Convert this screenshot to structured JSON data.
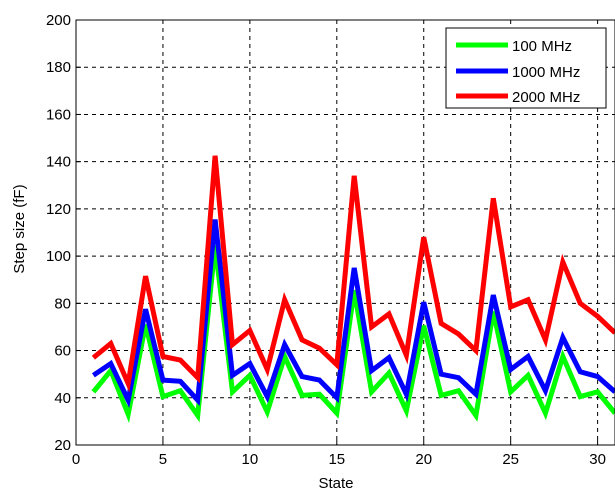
{
  "chart_data": {
    "type": "line",
    "title": "",
    "xlabel": "State",
    "ylabel": "Step size (fF)",
    "xlim": [
      0,
      31
    ],
    "ylim": [
      20,
      200
    ],
    "xticks": [
      0,
      5,
      10,
      15,
      20,
      25,
      30
    ],
    "yticks": [
      20,
      40,
      60,
      80,
      100,
      120,
      140,
      160,
      180,
      200
    ],
    "grid": true,
    "legend_position": "top-right",
    "x": [
      1,
      2,
      3,
      4,
      5,
      6,
      7,
      8,
      9,
      10,
      11,
      12,
      13,
      14,
      15,
      16,
      17,
      18,
      19,
      20,
      21,
      22,
      23,
      24,
      25,
      26,
      27,
      28,
      29,
      30,
      31
    ],
    "series": [
      {
        "name": "100 MHz",
        "color": "#00ff00",
        "values": [
          42.5,
          51.5,
          33,
          71,
          40.5,
          43,
          32.5,
          104.5,
          42.5,
          49.5,
          34,
          57.5,
          41,
          41.5,
          33.5,
          85.5,
          42.5,
          50.5,
          34.5,
          70.5,
          41,
          43,
          32.5,
          76.5,
          42.5,
          49.5,
          33.5,
          57.5,
          40.5,
          42.5,
          33.5
        ]
      },
      {
        "name": "1000 MHz",
        "color": "#0000ff",
        "values": [
          49.5,
          54.5,
          39,
          77.5,
          47.5,
          47,
          39,
          115.5,
          49.5,
          54.5,
          40.5,
          62.5,
          49,
          47.5,
          40,
          95,
          51.5,
          57,
          41.5,
          80.5,
          50,
          48.5,
          41.5,
          83.5,
          52,
          57.5,
          43,
          65.5,
          51,
          49,
          42.5
        ]
      },
      {
        "name": "2000 MHz",
        "color": "#ff0000",
        "values": [
          57,
          63,
          46,
          91.5,
          57.5,
          56,
          48.5,
          142.5,
          62.5,
          68.5,
          52,
          81.5,
          64.5,
          61,
          54,
          134,
          70,
          75.5,
          58,
          108,
          71.5,
          67,
          60,
          124.5,
          78.5,
          81.5,
          64.5,
          97.5,
          80,
          74.5,
          67.5
        ]
      }
    ]
  }
}
